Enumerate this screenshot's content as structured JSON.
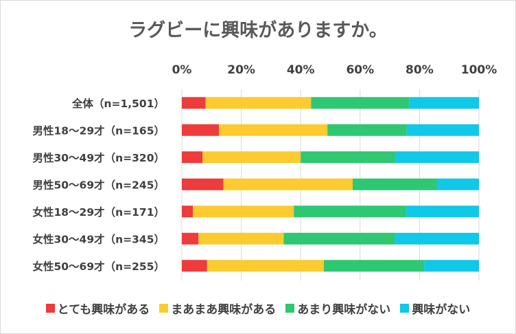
{
  "chart_data": {
    "type": "bar",
    "orientation": "horizontal",
    "stacked": "percent",
    "title": "ラグビーに興味がありますか。",
    "categories": [
      "全体（n=1,501）",
      "男性18～29才（n=165）",
      "男性30～49才（n=320）",
      "男性50～69才（n=245）",
      "女性18～29才（n=171）",
      "女性30～49才（n=345）",
      "女性50～69才（n=255）"
    ],
    "x_ticks": [
      "0%",
      "20%",
      "40%",
      "60%",
      "80%",
      "100%"
    ],
    "xlim": [
      0,
      100
    ],
    "grid": true,
    "legend_position": "bottom",
    "series": [
      {
        "name": "とても興味がある",
        "color": "#ee3b3b",
        "values": [
          8,
          12.5,
          7,
          14,
          3.7,
          5.6,
          8.5
        ]
      },
      {
        "name": "まあまあ興味がある",
        "color": "#fccb2f",
        "values": [
          35.5,
          36.5,
          33,
          43.5,
          34,
          28.7,
          39.3
        ]
      },
      {
        "name": "あまり興味がない",
        "color": "#2ec772",
        "values": [
          33,
          26.7,
          31.8,
          28.3,
          37.8,
          37.4,
          33.8
        ]
      },
      {
        "name": "興味がない",
        "color": "#10c8e8",
        "values": [
          23.5,
          24.3,
          28.2,
          14.2,
          24.5,
          28.3,
          18.4
        ]
      }
    ]
  }
}
